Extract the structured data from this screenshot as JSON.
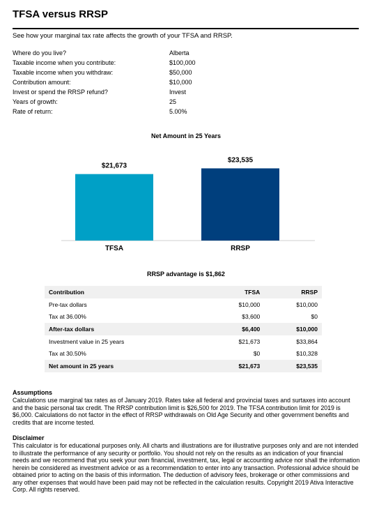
{
  "title": "TFSA versus RRSP",
  "intro": "See how your marginal tax rate affects the growth of your TFSA and RRSP.",
  "inputs": [
    {
      "label": "Where do you live?",
      "value": "Alberta"
    },
    {
      "label": "Taxable income when you contribute:",
      "value": "$100,000"
    },
    {
      "label": "Taxable income when you withdraw:",
      "value": "$50,000"
    },
    {
      "label": "Contribution amount:",
      "value": "$10,000"
    },
    {
      "label": "Invest or spend the RRSP refund?",
      "value": "Invest"
    },
    {
      "label": "Years of growth:",
      "value": "25"
    },
    {
      "label": "Rate of return:",
      "value": "5.00%"
    }
  ],
  "chart_data": {
    "type": "bar",
    "title": "Net Amount in 25 Years",
    "categories": [
      "TFSA",
      "RRSP"
    ],
    "values": [
      21673,
      23535
    ],
    "data_labels": [
      "$21,673",
      "$23,535"
    ],
    "colors": [
      "#00a0c6",
      "#003f7d"
    ],
    "ylim": [
      0,
      25000
    ],
    "grid": false
  },
  "advantage": "RRSP advantage is $1,862",
  "table": {
    "headers": [
      "Contribution",
      "TFSA",
      "RRSP"
    ],
    "rows": [
      {
        "label": "Pre-tax dollars",
        "tfsa": "$10,000",
        "rrsp": "$10,000"
      },
      {
        "label": "Tax at 36.00%",
        "tfsa": "$3,600",
        "rrsp": "$0"
      },
      {
        "label": "After-tax dollars",
        "tfsa": "$6,400",
        "rrsp": "$10,000"
      },
      {
        "label": "Investment value in 25 years",
        "tfsa": "$21,673",
        "rrsp": "$33,864"
      },
      {
        "label": "Tax at 30.50%",
        "tfsa": "$0",
        "rrsp": "$10,328"
      },
      {
        "label": "Net amount in 25 years",
        "tfsa": "$21,673",
        "rrsp": "$23,535"
      }
    ]
  },
  "assumptions": {
    "heading": "Assumptions",
    "text": "Calculations use marginal tax rates as of January 2019. Rates take all federal and provincial taxes and surtaxes into account and the basic personal tax credit. The RRSP contribution limit is $26,500 for 2019. The TFSA contribution limit for 2019 is $6,000. Calculations do not factor in the effect of RRSP withdrawals on Old Age Security and other government benefits and credits that are income tested."
  },
  "disclaimer": {
    "heading": "Disclaimer",
    "text": "This calculator is for educational purposes only. All charts and illustrations are for illustrative purposes only and are not intended to illustrate the performance of any security or portfolio. You should not rely on the results as an indication of your financial needs and we recommend that you seek your own financial, investment, tax, legal or accounting advice nor shall the information herein be considered as investment advice or as a recommendation to enter into any transaction. Professional advice should be obtained prior to acting on the basis of this information. The deduction of advisory fees, brokerage or other commissions and any other expenses that would have been paid may not be reflected in the calculation results. Copyright 2019 Ativa Interactive Corp. All rights reserved."
  }
}
